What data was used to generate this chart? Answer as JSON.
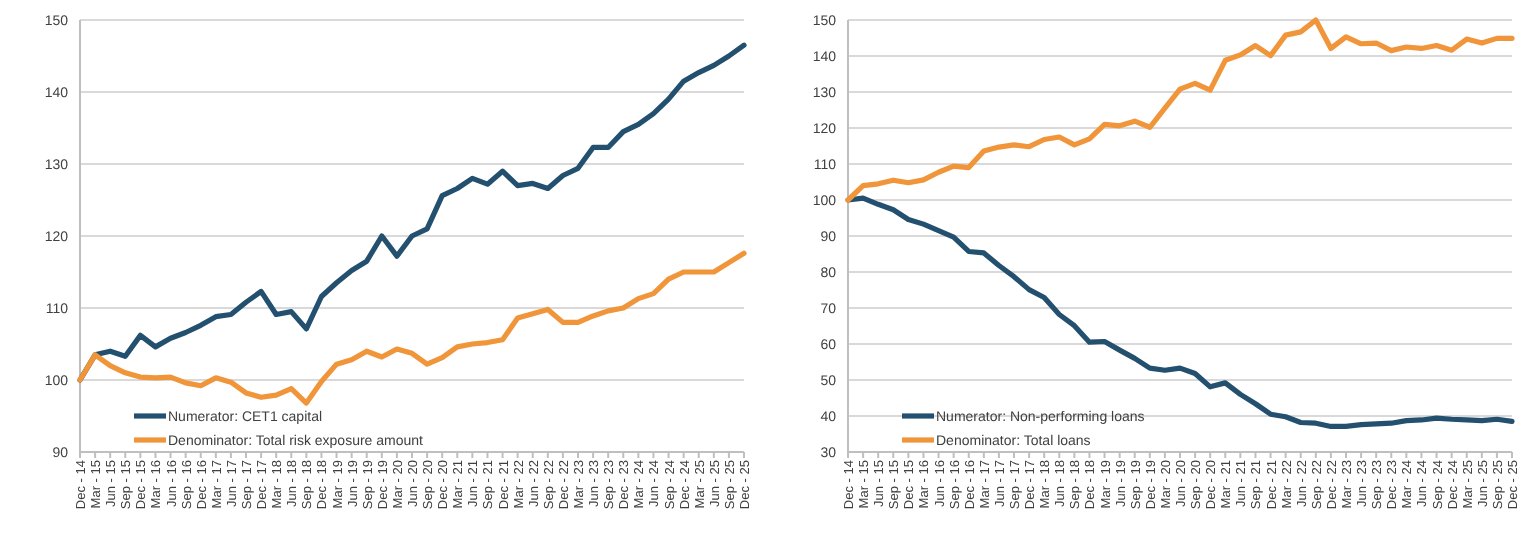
{
  "chart_data": [
    {
      "type": "line",
      "categories": [
        "Dec - 14",
        "Mar - 15",
        "Jun - 15",
        "Sep - 15",
        "Dec - 15",
        "Mar - 16",
        "Jun - 16",
        "Sep - 16",
        "Dec - 16",
        "Mar - 17",
        "Jun - 17",
        "Sep - 17",
        "Dec - 17",
        "Mar - 18",
        "Jun - 18",
        "Sep - 18",
        "Dec - 18",
        "Mar - 19",
        "Jun - 19",
        "Sep - 19",
        "Dec - 19",
        "Mar - 20",
        "Jun - 20",
        "Sep - 20",
        "Dec - 20",
        "Mar - 21",
        "Jun - 21",
        "Sep - 21",
        "Dec - 21",
        "Mar - 22",
        "Jun - 22",
        "Sep - 22",
        "Dec - 22",
        "Mar - 23",
        "Jun - 23",
        "Sep - 23",
        "Dec - 23",
        "Mar - 24",
        "Jun - 24",
        "Sep - 24",
        "Dec - 24",
        "Mar - 25",
        "Jun - 25",
        "Sep - 25",
        "Dec - 25"
      ],
      "series": [
        {
          "name": "Numerator: CET1 capital",
          "color": "#24506f",
          "values": [
            100,
            103.5,
            104,
            103.3,
            106.2,
            104.6,
            105.8,
            106.6,
            107.6,
            108.8,
            109.1,
            110.8,
            112.3,
            109.1,
            109.5,
            107.1,
            111.6,
            113.5,
            115.2,
            116.5,
            120,
            117.2,
            120,
            121,
            125.6,
            126.6,
            128,
            127.2,
            129,
            127,
            127.3,
            126.6,
            128.4,
            129.4,
            132.3,
            132.3,
            134.5,
            135.5,
            137,
            139,
            141.5,
            142.7,
            143.7,
            145,
            146.5
          ]
        },
        {
          "name": "Denominator: Total risk exposure amount",
          "color": "#f0953a",
          "values": [
            100,
            103.5,
            102,
            101,
            100.4,
            100.3,
            100.4,
            99.6,
            99.2,
            100.3,
            99.7,
            98.2,
            97.6,
            97.9,
            98.8,
            96.8,
            99.8,
            102.2,
            102.8,
            104,
            103.2,
            104.3,
            103.7,
            102.2,
            103.1,
            104.6,
            105,
            105.2,
            105.6,
            108.6,
            109.2,
            109.8,
            108,
            108,
            108.9,
            109.6,
            110,
            111.3,
            112,
            114,
            115,
            115,
            115,
            116.3,
            117.6
          ]
        }
      ],
      "ylim": [
        90,
        150
      ],
      "yticks": [
        90,
        100,
        110,
        120,
        130,
        140,
        150
      ],
      "grid": "y",
      "legend": "bottom left"
    },
    {
      "type": "line",
      "categories": [
        "Dec - 14",
        "Mar - 15",
        "Jun - 15",
        "Sep - 15",
        "Dec - 15",
        "Mar - 16",
        "Jun - 16",
        "Sep - 16",
        "Dec - 16",
        "Mar - 17",
        "Jun - 17",
        "Sep - 17",
        "Dec - 17",
        "Mar - 18",
        "Jun - 18",
        "Sep - 18",
        "Dec - 18",
        "Mar - 19",
        "Jun - 19",
        "Sep - 19",
        "Dec - 19",
        "Mar - 20",
        "Jun - 20",
        "Sep - 20",
        "Dec - 20",
        "Mar - 21",
        "Jun - 21",
        "Sep - 21",
        "Dec - 21",
        "Mar - 22",
        "Jun - 22",
        "Sep - 22",
        "Dec - 22",
        "Mar - 23",
        "Jun - 23",
        "Sep - 23",
        "Dec - 23",
        "Mar - 24",
        "Jun - 24",
        "Sep - 24",
        "Dec - 24",
        "Mar - 25",
        "Jun - 25",
        "Sep - 25",
        "Dec - 25"
      ],
      "series": [
        {
          "name": "Numerator: Non-performing loans",
          "color": "#24506f",
          "values": [
            100,
            100.5,
            98.8,
            97.3,
            94.6,
            93.3,
            91.5,
            89.7,
            85.7,
            85.3,
            81.8,
            78.7,
            75.1,
            72.9,
            68.2,
            65.1,
            60.5,
            60.7,
            58.3,
            56,
            53.3,
            52.7,
            53.3,
            51.8,
            48.1,
            49.2,
            46,
            43.4,
            40.5,
            39.8,
            38.2,
            38,
            37.1,
            37.1,
            37.6,
            37.8,
            38,
            38.7,
            38.9,
            39.4,
            39.1,
            38.9,
            38.7,
            39.1,
            38.5
          ]
        },
        {
          "name": "Denominator: Total loans",
          "color": "#f0953a",
          "values": [
            100,
            104,
            104.5,
            105.5,
            104.8,
            105.6,
            107.7,
            109.4,
            109,
            113.6,
            114.7,
            115.3,
            114.8,
            116.8,
            117.5,
            115.3,
            117,
            121,
            120.6,
            121.9,
            120.2,
            125.5,
            130.8,
            132.4,
            130.5,
            138.8,
            140.3,
            142.9,
            140.1,
            145.8,
            146.7,
            150,
            142.1,
            145.3,
            143.4,
            143.6,
            141.5,
            142.5,
            142.1,
            142.9,
            141.6,
            144.7,
            143.6,
            144.9,
            144.9
          ]
        }
      ],
      "ylim": [
        30,
        150
      ],
      "yticks": [
        30,
        40,
        50,
        60,
        70,
        80,
        90,
        100,
        110,
        120,
        130,
        140,
        150
      ],
      "grid": "y",
      "legend": "bottom left"
    }
  ]
}
